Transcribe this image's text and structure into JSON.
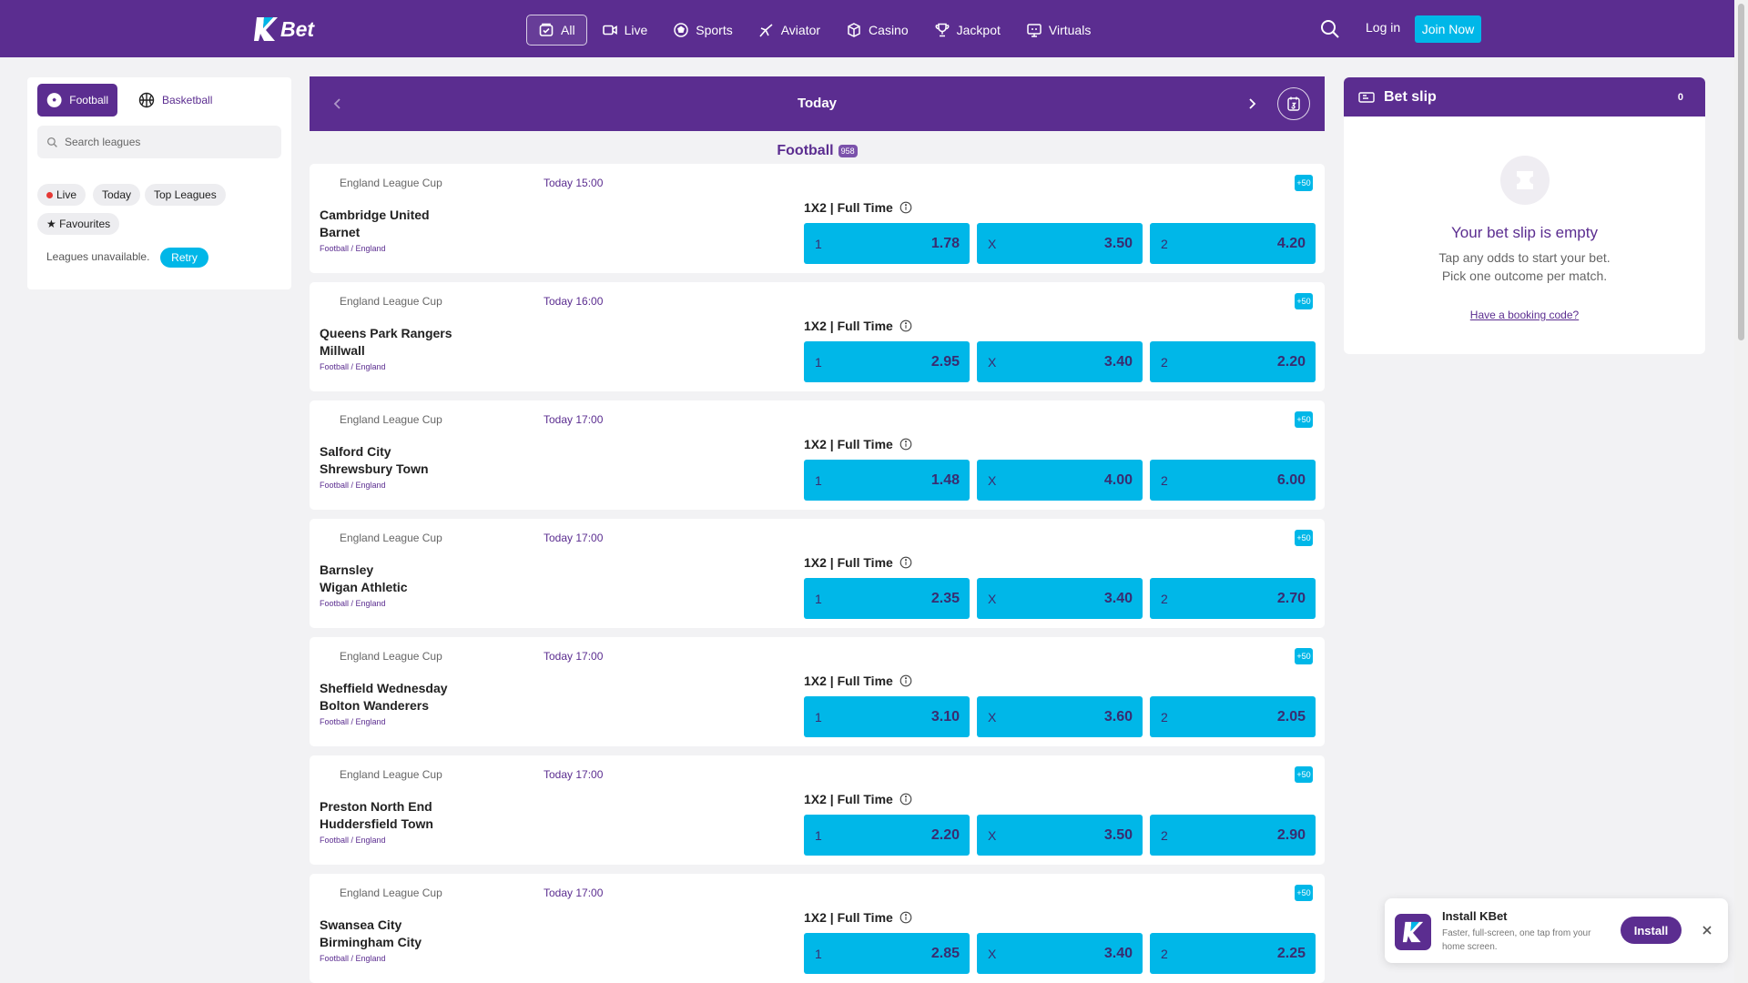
{
  "brand": {
    "logo_text": "Bet",
    "logo_letter": "K",
    "primary": "#5b2d90",
    "accent": "#00b7e8"
  },
  "nav": {
    "items": [
      {
        "label": "All",
        "icon": "ticket-check-icon"
      },
      {
        "label": "Live",
        "icon": "video-icon"
      },
      {
        "label": "Sports",
        "icon": "soccer-ball-icon"
      },
      {
        "label": "Aviator",
        "icon": "plane-icon"
      },
      {
        "label": "Casino",
        "icon": "dice-icon"
      },
      {
        "label": "Jackpot",
        "icon": "trophy-icon"
      },
      {
        "label": "Virtuals",
        "icon": "monitor-icon"
      }
    ],
    "login": "Log in",
    "join": "Join Now"
  },
  "sidebar": {
    "tabs": [
      {
        "label": "Football",
        "icon": "soccer-ball-icon"
      },
      {
        "label": "Basketball",
        "icon": "basketball-icon"
      }
    ],
    "search_placeholder": "Search leagues",
    "chips": [
      "Live",
      "Today",
      "Top Leagues",
      "★ Favourites"
    ],
    "unavailable": "Leagues unavailable.",
    "retry": "Retry"
  },
  "date_bar": {
    "title": "Today"
  },
  "section": {
    "title": "Football",
    "count": "958"
  },
  "market_label": "1X2 | Full Time",
  "matches": [
    {
      "league": "England League Cup",
      "time": "Today 15:00",
      "more": "+50",
      "home": "Cambridge United",
      "away": "Barnet",
      "category": "Football / England",
      "odds": [
        {
          "l": "1",
          "v": "1.78"
        },
        {
          "l": "X",
          "v": "3.50"
        },
        {
          "l": "2",
          "v": "4.20"
        }
      ]
    },
    {
      "league": "England League Cup",
      "time": "Today 16:00",
      "more": "+50",
      "home": "Queens Park Rangers",
      "away": "Millwall",
      "category": "Football / England",
      "odds": [
        {
          "l": "1",
          "v": "2.95"
        },
        {
          "l": "X",
          "v": "3.40"
        },
        {
          "l": "2",
          "v": "2.20"
        }
      ]
    },
    {
      "league": "England League Cup",
      "time": "Today 17:00",
      "more": "+50",
      "home": "Salford City",
      "away": "Shrewsbury Town",
      "category": "Football / England",
      "odds": [
        {
          "l": "1",
          "v": "1.48"
        },
        {
          "l": "X",
          "v": "4.00"
        },
        {
          "l": "2",
          "v": "6.00"
        }
      ]
    },
    {
      "league": "England League Cup",
      "time": "Today 17:00",
      "more": "+50",
      "home": "Barnsley",
      "away": "Wigan Athletic",
      "category": "Football / England",
      "odds": [
        {
          "l": "1",
          "v": "2.35"
        },
        {
          "l": "X",
          "v": "3.40"
        },
        {
          "l": "2",
          "v": "2.70"
        }
      ]
    },
    {
      "league": "England League Cup",
      "time": "Today 17:00",
      "more": "+50",
      "home": "Sheffield Wednesday",
      "away": "Bolton Wanderers",
      "category": "Football / England",
      "odds": [
        {
          "l": "1",
          "v": "3.10"
        },
        {
          "l": "X",
          "v": "3.60"
        },
        {
          "l": "2",
          "v": "2.05"
        }
      ]
    },
    {
      "league": "England League Cup",
      "time": "Today 17:00",
      "more": "+50",
      "home": "Preston North End",
      "away": "Huddersfield Town",
      "category": "Football / England",
      "odds": [
        {
          "l": "1",
          "v": "2.20"
        },
        {
          "l": "X",
          "v": "3.50"
        },
        {
          "l": "2",
          "v": "2.90"
        }
      ]
    },
    {
      "league": "England League Cup",
      "time": "Today 17:00",
      "more": "+50",
      "home": "Swansea City",
      "away": "Birmingham City",
      "category": "Football / England",
      "odds": [
        {
          "l": "1",
          "v": "2.85"
        },
        {
          "l": "X",
          "v": "3.40"
        },
        {
          "l": "2",
          "v": "2.25"
        }
      ]
    }
  ],
  "betslip": {
    "title": "Bet slip",
    "count": "0",
    "empty": "Your bet slip is empty",
    "hint1": "Tap any odds to start your bet.",
    "hint2": "Pick one outcome per match.",
    "booking": "Have a booking code?"
  },
  "install": {
    "title": "Install KBet",
    "desc": "Faster, full-screen, one tap from your home screen.",
    "button": "Install"
  }
}
